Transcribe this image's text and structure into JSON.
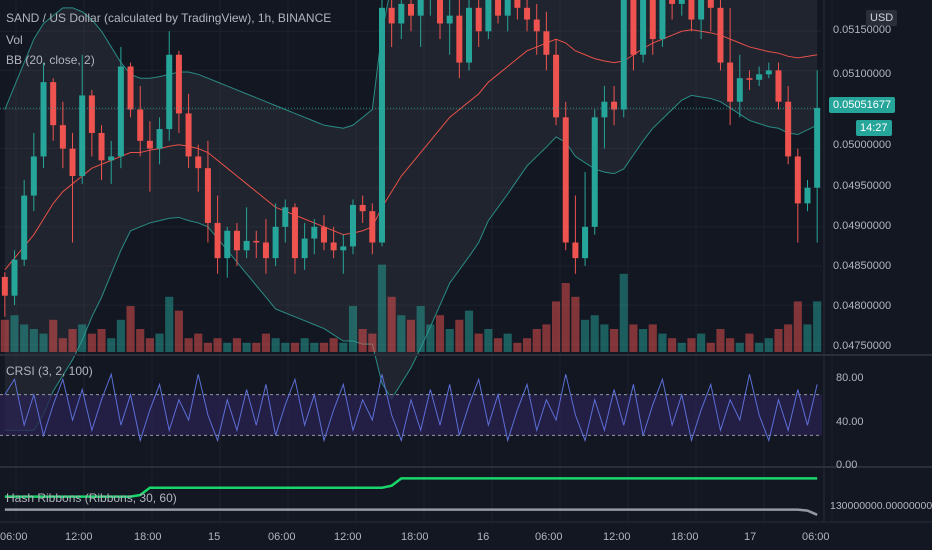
{
  "header": {
    "symbol_title": "SAND / US Dollar (calculated by TradingView), 1h, BINANCE",
    "indicator_vol": "Vol",
    "indicator_bb": "BB (20, close, 2)",
    "currency": "USD"
  },
  "price_axis": {
    "ticks": [
      "0.05150000",
      "0.05100000",
      "0.05000000",
      "0.04950000",
      "0.04900000",
      "0.04850000",
      "0.04800000",
      "0.04750000"
    ],
    "last_price": "0.05051677",
    "countdown": "14:27"
  },
  "crsi_panel": {
    "title": "CRSI (3, 2, 100)",
    "ticks": [
      "80.00",
      "40.00",
      "0.00"
    ]
  },
  "hash_panel": {
    "title": "Hash Ribbons (Ribbons, 30, 60)",
    "tick": "130000000.00000000"
  },
  "time_axis": {
    "labels": [
      "06:00",
      "12:00",
      "18:00",
      "15",
      "06:00",
      "12:00",
      "18:00",
      "16",
      "06:00",
      "12:00",
      "18:00",
      "17",
      "06:00"
    ]
  },
  "colors": {
    "bg": "#131722",
    "up": "#26a69a",
    "down": "#ef5350",
    "bb_basis": "#e8504a",
    "bb_band": "#2a8c85",
    "crsi_line": "#5b6fd6",
    "crsi_band": "#2a2150",
    "hash_fast": "#19d66b",
    "hash_slow": "#9598a1"
  },
  "chart_data": {
    "type": "candlestick",
    "ylim": [
      0.0474,
      0.0519
    ],
    "candles": [
      [
        0.04836,
        0.04842,
        0.04785,
        0.04812
      ],
      [
        0.04812,
        0.0487,
        0.048,
        0.04858
      ],
      [
        0.04858,
        0.0496,
        0.0485,
        0.0494
      ],
      [
        0.0494,
        0.0502,
        0.0492,
        0.0499
      ],
      [
        0.0499,
        0.0511,
        0.04975,
        0.05085
      ],
      [
        0.05085,
        0.0509,
        0.0501,
        0.0503
      ],
      [
        0.0503,
        0.0506,
        0.04975,
        0.05
      ],
      [
        0.05,
        0.0502,
        0.0488,
        0.04965
      ],
      [
        0.04965,
        0.0512,
        0.04955,
        0.05068
      ],
      [
        0.05068,
        0.05075,
        0.0499,
        0.0502
      ],
      [
        0.0502,
        0.0503,
        0.0496,
        0.04985
      ],
      [
        0.04985,
        0.0501,
        0.04955,
        0.0499
      ],
      [
        0.0499,
        0.0513,
        0.04975,
        0.05105
      ],
      [
        0.05105,
        0.0511,
        0.0504,
        0.0505
      ],
      [
        0.0505,
        0.0508,
        0.0499,
        0.0501
      ],
      [
        0.0501,
        0.05035,
        0.04945,
        0.05
      ],
      [
        0.05,
        0.0504,
        0.0498,
        0.05025
      ],
      [
        0.05025,
        0.0515,
        0.0501,
        0.0512
      ],
      [
        0.0512,
        0.05125,
        0.0502,
        0.05045
      ],
      [
        0.05045,
        0.0507,
        0.04975,
        0.0499
      ],
      [
        0.0499,
        0.05005,
        0.04945,
        0.04975
      ],
      [
        0.04975,
        0.0501,
        0.0488,
        0.04905
      ],
      [
        0.04905,
        0.0494,
        0.0484,
        0.0486
      ],
      [
        0.0486,
        0.049,
        0.04835,
        0.04895
      ],
      [
        0.04895,
        0.04905,
        0.0485,
        0.0487
      ],
      [
        0.0487,
        0.04925,
        0.0486,
        0.04882
      ],
      [
        0.04882,
        0.04895,
        0.0486,
        0.0488
      ],
      [
        0.0488,
        0.0491,
        0.0484,
        0.0486
      ],
      [
        0.0486,
        0.0493,
        0.0485,
        0.049
      ],
      [
        0.049,
        0.04935,
        0.0488,
        0.04925
      ],
      [
        0.04925,
        0.0493,
        0.0484,
        0.0486
      ],
      [
        0.0486,
        0.04905,
        0.04845,
        0.04885
      ],
      [
        0.04885,
        0.0491,
        0.04865,
        0.049
      ],
      [
        0.049,
        0.04915,
        0.0487,
        0.0488
      ],
      [
        0.0488,
        0.049,
        0.0486,
        0.0487
      ],
      [
        0.0487,
        0.0489,
        0.0484,
        0.04875
      ],
      [
        0.04875,
        0.04935,
        0.04865,
        0.04928
      ],
      [
        0.04928,
        0.0494,
        0.04905,
        0.0492
      ],
      [
        0.0492,
        0.0493,
        0.04865,
        0.0488
      ],
      [
        0.0488,
        0.05195,
        0.04875,
        0.0518
      ],
      [
        0.0518,
        0.052,
        0.0513,
        0.0516
      ],
      [
        0.0516,
        0.052,
        0.0514,
        0.05185
      ],
      [
        0.05185,
        0.052,
        0.0515,
        0.0517
      ],
      [
        0.0517,
        0.052,
        0.0513,
        0.0519
      ],
      [
        0.0519,
        0.052,
        0.0517,
        0.05195
      ],
      [
        0.05195,
        0.052,
        0.0514,
        0.0516
      ],
      [
        0.0516,
        0.052,
        0.0512,
        0.0517
      ],
      [
        0.0517,
        0.052,
        0.0509,
        0.0511
      ],
      [
        0.0511,
        0.05195,
        0.051,
        0.0518
      ],
      [
        0.0518,
        0.052,
        0.0513,
        0.0515
      ],
      [
        0.0515,
        0.052,
        0.0514,
        0.0519
      ],
      [
        0.0519,
        0.052,
        0.0516,
        0.0517
      ],
      [
        0.0517,
        0.052,
        0.0515,
        0.0519
      ],
      [
        0.0519,
        0.052,
        0.05165,
        0.0518
      ],
      [
        0.0518,
        0.052,
        0.0515,
        0.05165
      ],
      [
        0.05165,
        0.05185,
        0.0512,
        0.0515
      ],
      [
        0.0515,
        0.05175,
        0.051,
        0.0512
      ],
      [
        0.0512,
        0.0514,
        0.0503,
        0.0504
      ],
      [
        0.0504,
        0.0506,
        0.0487,
        0.0488
      ],
      [
        0.0488,
        0.0494,
        0.0484,
        0.0486
      ],
      [
        0.0486,
        0.0497,
        0.0485,
        0.049
      ],
      [
        0.049,
        0.0505,
        0.0489,
        0.0504
      ],
      [
        0.0504,
        0.0508,
        0.05,
        0.0506
      ],
      [
        0.0506,
        0.0508,
        0.0503,
        0.0505
      ],
      [
        0.0505,
        0.052,
        0.0504,
        0.05195
      ],
      [
        0.05195,
        0.052,
        0.051,
        0.0512
      ],
      [
        0.0512,
        0.052,
        0.0511,
        0.05195
      ],
      [
        0.05195,
        0.052,
        0.0512,
        0.0514
      ],
      [
        0.0514,
        0.052,
        0.0513,
        0.0519
      ],
      [
        0.0519,
        0.052,
        0.05165,
        0.05185
      ],
      [
        0.05185,
        0.052,
        0.0517,
        0.05195
      ],
      [
        0.05195,
        0.052,
        0.0515,
        0.05165
      ],
      [
        0.05165,
        0.052,
        0.0514,
        0.0519
      ],
      [
        0.0519,
        0.052,
        0.0515,
        0.0518
      ],
      [
        0.0518,
        0.052,
        0.051,
        0.0511
      ],
      [
        0.0511,
        0.0518,
        0.0503,
        0.0506
      ],
      [
        0.0506,
        0.0512,
        0.0504,
        0.0509
      ],
      [
        0.0509,
        0.051,
        0.05075,
        0.05088
      ],
      [
        0.05088,
        0.05105,
        0.0508,
        0.05095
      ],
      [
        0.05095,
        0.0511,
        0.0509,
        0.051
      ],
      [
        0.051,
        0.0511,
        0.0505,
        0.0506
      ],
      [
        0.0506,
        0.0508,
        0.0498,
        0.0499
      ],
      [
        0.0499,
        0.05,
        0.0488,
        0.0493
      ],
      [
        0.0493,
        0.0496,
        0.0492,
        0.0495
      ],
      [
        0.0495,
        0.051,
        0.0488,
        0.05052
      ]
    ],
    "bb_basis": [
      0.04845,
      0.0486,
      0.04875,
      0.0489,
      0.0491,
      0.0493,
      0.04945,
      0.04955,
      0.04965,
      0.04975,
      0.0498,
      0.04985,
      0.0499,
      0.04995,
      0.04995,
      0.04998,
      0.05,
      0.05003,
      0.05005,
      0.05003,
      0.05,
      0.04995,
      0.04985,
      0.04975,
      0.04965,
      0.04955,
      0.04945,
      0.04935,
      0.04925,
      0.0492,
      0.04915,
      0.0491,
      0.04905,
      0.049,
      0.04895,
      0.0489,
      0.04892,
      0.04895,
      0.049,
      0.04925,
      0.04945,
      0.04965,
      0.0498,
      0.04995,
      0.0501,
      0.05025,
      0.0504,
      0.0505,
      0.0506,
      0.0507,
      0.05085,
      0.05095,
      0.05105,
      0.05115,
      0.05125,
      0.0513,
      0.05135,
      0.0514,
      0.05135,
      0.05125,
      0.0512,
      0.05115,
      0.05112,
      0.0511,
      0.05112,
      0.0512,
      0.05128,
      0.05135,
      0.0514,
      0.05145,
      0.0515,
      0.05152,
      0.0515,
      0.05148,
      0.05145,
      0.0514,
      0.05135,
      0.0513,
      0.05127,
      0.05124,
      0.05122,
      0.05118,
      0.05116,
      0.05118,
      0.0512
    ],
    "bb_upper": [
      0.0505,
      0.0508,
      0.0511,
      0.0514,
      0.0516,
      0.0517,
      0.0518,
      0.0518,
      0.05175,
      0.05165,
      0.0515,
      0.0513,
      0.0511,
      0.05095,
      0.0509,
      0.0509,
      0.05092,
      0.05095,
      0.05098,
      0.05098,
      0.05095,
      0.0509,
      0.05085,
      0.0508,
      0.05075,
      0.0507,
      0.05065,
      0.0506,
      0.05055,
      0.0505,
      0.05045,
      0.0504,
      0.05035,
      0.0503,
      0.05028,
      0.05026,
      0.0503,
      0.0504,
      0.0505,
      0.0515,
      0.0521,
      0.0523,
      0.0524,
      0.05245,
      0.05248,
      0.0525,
      0.05252,
      0.05255,
      0.05258,
      0.0526,
      0.05262,
      0.05265,
      0.05268,
      0.0527,
      0.05272,
      0.0527,
      0.05268,
      0.05265,
      0.05262,
      0.0526,
      0.05258,
      0.05256,
      0.05254,
      0.05252,
      0.0525,
      0.05248,
      0.05246,
      0.05244,
      0.05242,
      0.0524,
      0.05238,
      0.05236,
      0.05234,
      0.05232,
      0.0523,
      0.05228,
      0.05226,
      0.05224,
      0.05222,
      0.0522,
      0.05218,
      0.05216,
      0.05214,
      0.05212,
      0.0521
    ],
    "bb_lower": [
      0.0464,
      0.0464,
      0.0464,
      0.0464,
      0.0466,
      0.0469,
      0.0471,
      0.0473,
      0.04755,
      0.04785,
      0.0481,
      0.0484,
      0.0487,
      0.04895,
      0.049,
      0.04905,
      0.04908,
      0.04911,
      0.04912,
      0.04908,
      0.04905,
      0.049,
      0.04885,
      0.0487,
      0.04855,
      0.0484,
      0.04825,
      0.0481,
      0.04795,
      0.0479,
      0.04785,
      0.0478,
      0.04775,
      0.0477,
      0.04762,
      0.04754,
      0.04754,
      0.0475,
      0.0475,
      0.047,
      0.0468,
      0.047,
      0.0472,
      0.04745,
      0.04772,
      0.048,
      0.04828,
      0.04845,
      0.04862,
      0.0488,
      0.04908,
      0.04925,
      0.04942,
      0.0496,
      0.04978,
      0.0499,
      0.05002,
      0.05015,
      0.05008,
      0.0499,
      0.04982,
      0.04974,
      0.0497,
      0.04968,
      0.04974,
      0.04992,
      0.0501,
      0.05026,
      0.05038,
      0.0505,
      0.05062,
      0.05068,
      0.05066,
      0.05064,
      0.0506,
      0.05052,
      0.05044,
      0.05036,
      0.05032,
      0.05028,
      0.05026,
      0.0502,
      0.05018,
      0.05024,
      0.0503
    ],
    "volume": [
      0.35,
      0.4,
      0.3,
      0.25,
      0.2,
      0.35,
      0.15,
      0.25,
      0.3,
      0.2,
      0.25,
      0.15,
      0.35,
      0.5,
      0.25,
      0.15,
      0.2,
      0.6,
      0.45,
      0.15,
      0.2,
      0.1,
      0.15,
      0.1,
      0.15,
      0.1,
      0.1,
      0.2,
      0.15,
      0.1,
      0.1,
      0.15,
      0.1,
      0.1,
      0.15,
      0.1,
      0.5,
      0.25,
      0.2,
      0.95,
      0.6,
      0.4,
      0.35,
      0.5,
      0.3,
      0.4,
      0.25,
      0.35,
      0.45,
      0.2,
      0.25,
      0.15,
      0.2,
      0.1,
      0.15,
      0.25,
      0.3,
      0.55,
      0.75,
      0.6,
      0.35,
      0.4,
      0.3,
      0.25,
      0.85,
      0.3,
      0.25,
      0.3,
      0.2,
      0.15,
      0.1,
      0.15,
      0.2,
      0.1,
      0.25,
      0.15,
      0.1,
      0.2,
      0.1,
      0.15,
      0.25,
      0.3,
      0.55,
      0.3,
      0.55
    ],
    "crsi": [
      70,
      85,
      40,
      70,
      30,
      60,
      85,
      45,
      75,
      35,
      65,
      90,
      40,
      70,
      25,
      55,
      80,
      35,
      65,
      45,
      90,
      50,
      25,
      65,
      35,
      75,
      40,
      80,
      30,
      60,
      85,
      40,
      70,
      25,
      55,
      80,
      35,
      65,
      45,
      90,
      50,
      25,
      65,
      35,
      75,
      40,
      80,
      30,
      60,
      85,
      40,
      70,
      25,
      55,
      80,
      35,
      65,
      45,
      90,
      50,
      25,
      65,
      35,
      75,
      40,
      80,
      30,
      60,
      85,
      40,
      70,
      25,
      55,
      80,
      35,
      65,
      45,
      90,
      50,
      25,
      65,
      35,
      75,
      40,
      80
    ],
    "crsi_band": [
      30,
      70
    ],
    "hash_fast": [
      0.45,
      0.45,
      0.45,
      0.45,
      0.45,
      0.45,
      0.45,
      0.45,
      0.45,
      0.45,
      0.45,
      0.45,
      0.45,
      0.45,
      0.48,
      0.62,
      0.62,
      0.62,
      0.62,
      0.62,
      0.62,
      0.62,
      0.62,
      0.62,
      0.62,
      0.62,
      0.62,
      0.62,
      0.62,
      0.62,
      0.62,
      0.62,
      0.62,
      0.62,
      0.62,
      0.62,
      0.62,
      0.62,
      0.62,
      0.62,
      0.66,
      0.8,
      0.8,
      0.8,
      0.8,
      0.8,
      0.8,
      0.8,
      0.8,
      0.8,
      0.8,
      0.8,
      0.8,
      0.8,
      0.8,
      0.8,
      0.8,
      0.8,
      0.8,
      0.8,
      0.8,
      0.8,
      0.8,
      0.8,
      0.8,
      0.8,
      0.8,
      0.8,
      0.8,
      0.8,
      0.8,
      0.8,
      0.8,
      0.8,
      0.8,
      0.8,
      0.8,
      0.8,
      0.8,
      0.8,
      0.8,
      0.8,
      0.8,
      0.8,
      0.8
    ],
    "hash_slow": [
      0.2,
      0.2,
      0.2,
      0.2,
      0.2,
      0.2,
      0.2,
      0.2,
      0.2,
      0.2,
      0.2,
      0.2,
      0.2,
      0.2,
      0.2,
      0.2,
      0.2,
      0.2,
      0.2,
      0.2,
      0.2,
      0.2,
      0.2,
      0.2,
      0.2,
      0.2,
      0.2,
      0.2,
      0.2,
      0.2,
      0.2,
      0.2,
      0.2,
      0.2,
      0.2,
      0.2,
      0.2,
      0.2,
      0.2,
      0.2,
      0.2,
      0.2,
      0.2,
      0.2,
      0.2,
      0.2,
      0.2,
      0.2,
      0.2,
      0.2,
      0.2,
      0.2,
      0.2,
      0.2,
      0.2,
      0.2,
      0.2,
      0.2,
      0.2,
      0.2,
      0.2,
      0.2,
      0.2,
      0.2,
      0.2,
      0.2,
      0.2,
      0.2,
      0.2,
      0.2,
      0.2,
      0.2,
      0.2,
      0.2,
      0.2,
      0.2,
      0.2,
      0.2,
      0.2,
      0.2,
      0.2,
      0.2,
      0.2,
      0.18,
      0.1
    ]
  }
}
